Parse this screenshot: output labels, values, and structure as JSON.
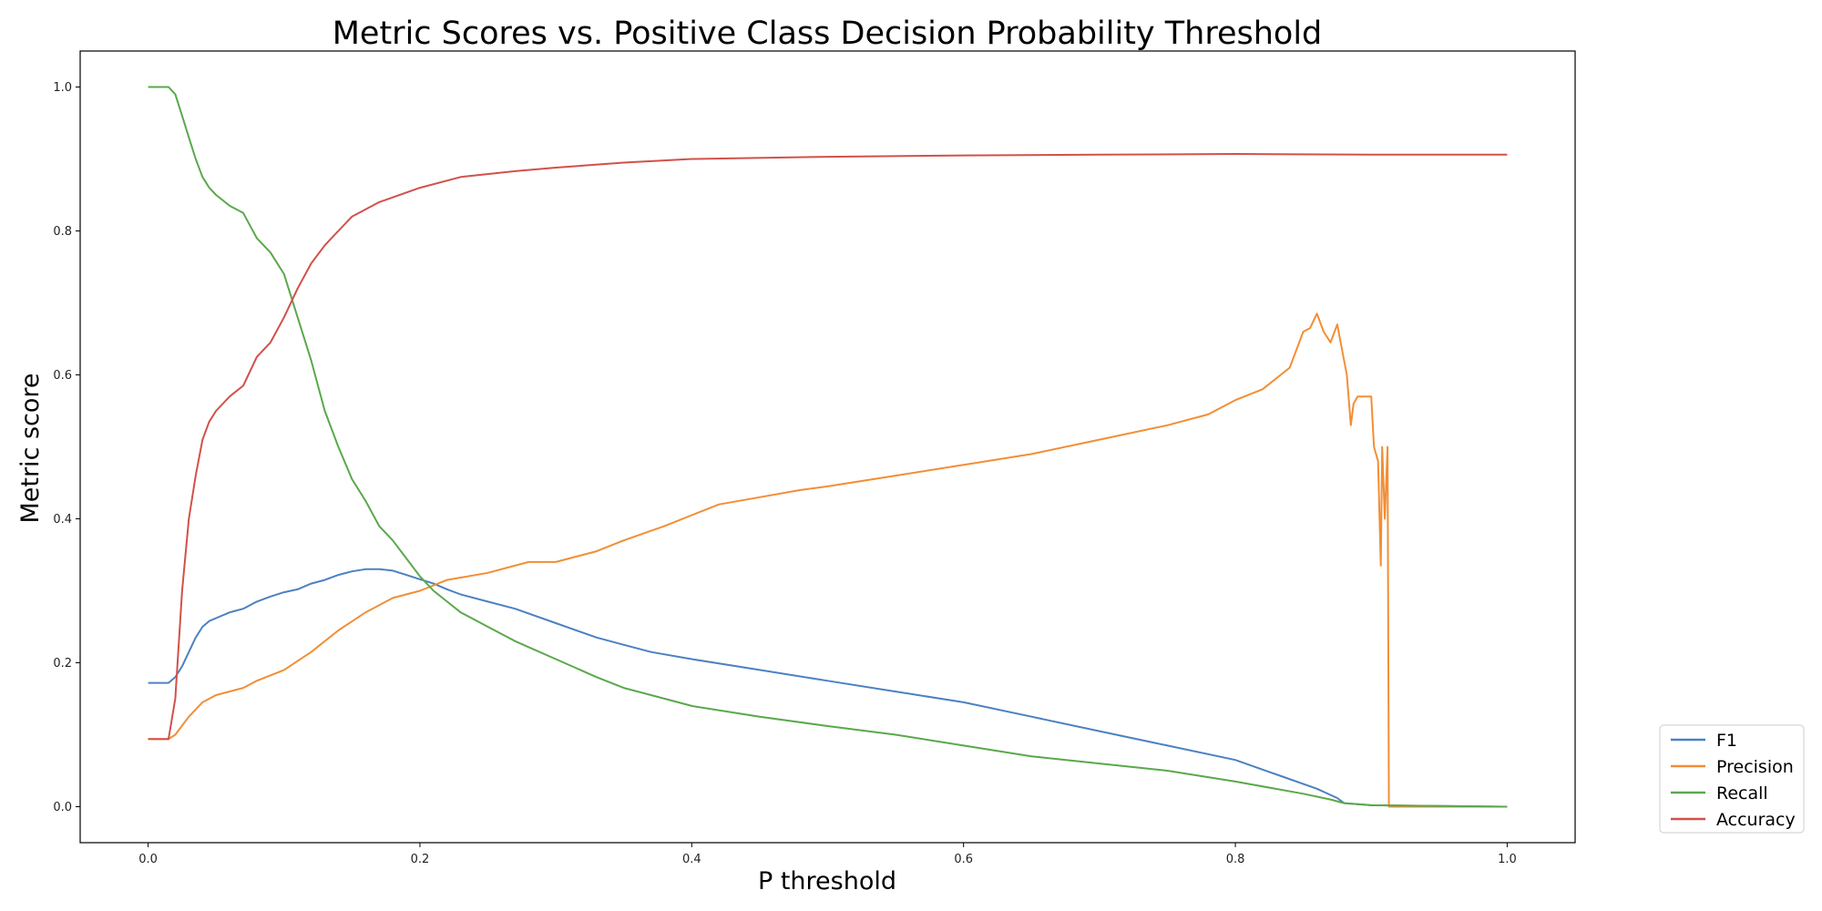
{
  "chart_data": {
    "type": "line",
    "title": "Metric Scores vs. Positive Class Decision Probability Threshold",
    "xlabel": "P threshold",
    "ylabel": "Metric score",
    "xlim": [
      -0.05,
      1.05
    ],
    "ylim": [
      -0.05,
      1.05
    ],
    "xticks": [
      "0.0",
      "0.2",
      "0.4",
      "0.6",
      "0.8",
      "1.0"
    ],
    "yticks": [
      "0.0",
      "0.2",
      "0.4",
      "0.6",
      "0.8",
      "1.0"
    ],
    "grid": false,
    "legend_position": "outside-bottom-right",
    "series": [
      {
        "name": "F1",
        "color": "#4C81C1",
        "x": [
          0.0,
          0.015,
          0.02,
          0.025,
          0.03,
          0.035,
          0.04,
          0.045,
          0.05,
          0.06,
          0.07,
          0.08,
          0.09,
          0.1,
          0.11,
          0.12,
          0.13,
          0.14,
          0.15,
          0.16,
          0.17,
          0.18,
          0.19,
          0.2,
          0.21,
          0.22,
          0.23,
          0.25,
          0.27,
          0.3,
          0.33,
          0.35,
          0.37,
          0.4,
          0.45,
          0.5,
          0.55,
          0.6,
          0.65,
          0.7,
          0.75,
          0.8,
          0.83,
          0.86,
          0.875,
          0.88,
          0.9,
          1.0
        ],
        "y": [
          0.172,
          0.172,
          0.18,
          0.195,
          0.215,
          0.235,
          0.25,
          0.258,
          0.262,
          0.27,
          0.275,
          0.285,
          0.292,
          0.298,
          0.302,
          0.31,
          0.315,
          0.322,
          0.327,
          0.33,
          0.33,
          0.328,
          0.322,
          0.316,
          0.31,
          0.302,
          0.295,
          0.285,
          0.275,
          0.255,
          0.235,
          0.225,
          0.215,
          0.205,
          0.19,
          0.175,
          0.16,
          0.145,
          0.125,
          0.105,
          0.085,
          0.065,
          0.045,
          0.025,
          0.012,
          0.005,
          0.002,
          0.0
        ]
      },
      {
        "name": "Precision",
        "color": "#F28E35",
        "x": [
          0.0,
          0.015,
          0.02,
          0.03,
          0.04,
          0.05,
          0.07,
          0.08,
          0.1,
          0.12,
          0.14,
          0.16,
          0.18,
          0.2,
          0.22,
          0.25,
          0.28,
          0.3,
          0.33,
          0.35,
          0.38,
          0.4,
          0.42,
          0.45,
          0.48,
          0.5,
          0.55,
          0.6,
          0.65,
          0.7,
          0.75,
          0.78,
          0.8,
          0.82,
          0.84,
          0.85,
          0.855,
          0.86,
          0.865,
          0.87,
          0.875,
          0.88,
          0.882,
          0.885,
          0.887,
          0.89,
          0.9,
          0.902,
          0.905,
          0.907,
          0.908,
          0.91,
          0.912,
          0.913,
          1.0
        ],
        "y": [
          0.094,
          0.094,
          0.1,
          0.125,
          0.145,
          0.155,
          0.165,
          0.175,
          0.19,
          0.215,
          0.245,
          0.27,
          0.29,
          0.3,
          0.315,
          0.325,
          0.34,
          0.34,
          0.355,
          0.37,
          0.39,
          0.405,
          0.42,
          0.43,
          0.44,
          0.445,
          0.46,
          0.475,
          0.49,
          0.51,
          0.53,
          0.545,
          0.565,
          0.58,
          0.61,
          0.66,
          0.665,
          0.685,
          0.66,
          0.645,
          0.67,
          0.62,
          0.6,
          0.53,
          0.56,
          0.57,
          0.57,
          0.5,
          0.48,
          0.335,
          0.5,
          0.4,
          0.5,
          0.0,
          0.0
        ]
      },
      {
        "name": "Recall",
        "color": "#5AA84C",
        "x": [
          0.0,
          0.015,
          0.02,
          0.025,
          0.03,
          0.035,
          0.04,
          0.045,
          0.05,
          0.06,
          0.07,
          0.08,
          0.09,
          0.1,
          0.11,
          0.12,
          0.13,
          0.14,
          0.15,
          0.16,
          0.17,
          0.18,
          0.19,
          0.2,
          0.21,
          0.22,
          0.23,
          0.25,
          0.27,
          0.3,
          0.33,
          0.35,
          0.37,
          0.4,
          0.45,
          0.5,
          0.55,
          0.6,
          0.65,
          0.7,
          0.75,
          0.8,
          0.85,
          0.87,
          0.88,
          0.9,
          1.0
        ],
        "y": [
          1.0,
          1.0,
          0.99,
          0.96,
          0.93,
          0.9,
          0.875,
          0.86,
          0.85,
          0.835,
          0.825,
          0.79,
          0.77,
          0.74,
          0.68,
          0.62,
          0.55,
          0.5,
          0.455,
          0.425,
          0.39,
          0.37,
          0.345,
          0.32,
          0.3,
          0.285,
          0.27,
          0.25,
          0.23,
          0.205,
          0.18,
          0.165,
          0.155,
          0.14,
          0.125,
          0.112,
          0.1,
          0.085,
          0.07,
          0.06,
          0.05,
          0.035,
          0.018,
          0.01,
          0.005,
          0.002,
          0.0
        ]
      },
      {
        "name": "Accuracy",
        "color": "#D1514A",
        "x": [
          0.0,
          0.015,
          0.02,
          0.025,
          0.03,
          0.035,
          0.04,
          0.045,
          0.05,
          0.06,
          0.07,
          0.08,
          0.09,
          0.1,
          0.11,
          0.12,
          0.13,
          0.14,
          0.15,
          0.17,
          0.2,
          0.23,
          0.27,
          0.3,
          0.35,
          0.4,
          0.5,
          0.6,
          0.7,
          0.8,
          0.9,
          1.0
        ],
        "y": [
          0.094,
          0.094,
          0.15,
          0.3,
          0.4,
          0.46,
          0.51,
          0.535,
          0.55,
          0.57,
          0.585,
          0.625,
          0.645,
          0.68,
          0.72,
          0.755,
          0.78,
          0.8,
          0.82,
          0.84,
          0.86,
          0.875,
          0.883,
          0.888,
          0.895,
          0.9,
          0.903,
          0.905,
          0.906,
          0.907,
          0.906,
          0.906
        ]
      }
    ]
  }
}
